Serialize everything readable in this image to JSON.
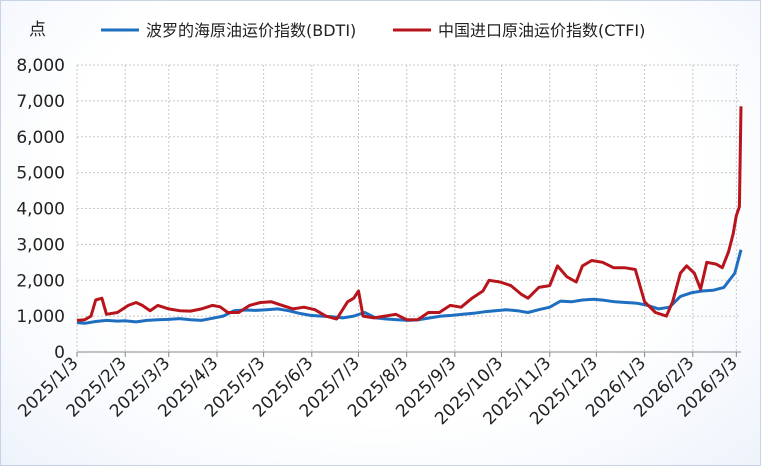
{
  "chart_data": {
    "type": "line",
    "y_unit_label": "点",
    "ylim": [
      0,
      8000
    ],
    "yticks": [
      "0",
      "1,000",
      "2,000",
      "3,000",
      "4,000",
      "5,000",
      "6,000",
      "7,000",
      "8,000"
    ],
    "xticks": [
      "2025/1/3",
      "2025/2/3",
      "2025/3/3",
      "2025/4/3",
      "2025/5/3",
      "2025/6/3",
      "2025/7/3",
      "2025/8/3",
      "2025/9/3",
      "2025/10/3",
      "2025/11/3",
      "2025/12/3",
      "2026/1/3",
      "2026/2/3",
      "2026/3/3"
    ],
    "xlim": [
      "2025-01-03",
      "2026-03-06"
    ],
    "grid": true,
    "legend_position": "top",
    "series": [
      {
        "name": "波罗的海原油运价指数(BDTI)",
        "color": "#1f6fc1",
        "points": [
          [
            "2025-01-03",
            820
          ],
          [
            "2025-01-08",
            800
          ],
          [
            "2025-01-15",
            850
          ],
          [
            "2025-01-22",
            880
          ],
          [
            "2025-01-29",
            860
          ],
          [
            "2025-02-03",
            870
          ],
          [
            "2025-02-10",
            840
          ],
          [
            "2025-02-17",
            880
          ],
          [
            "2025-02-24",
            900
          ],
          [
            "2025-03-03",
            910
          ],
          [
            "2025-03-10",
            930
          ],
          [
            "2025-03-17",
            900
          ],
          [
            "2025-03-24",
            880
          ],
          [
            "2025-03-31",
            940
          ],
          [
            "2025-04-07",
            1000
          ],
          [
            "2025-04-14",
            1150
          ],
          [
            "2025-04-21",
            1170
          ],
          [
            "2025-04-28",
            1160
          ],
          [
            "2025-05-05",
            1180
          ],
          [
            "2025-05-12",
            1200
          ],
          [
            "2025-05-19",
            1150
          ],
          [
            "2025-05-26",
            1080
          ],
          [
            "2025-06-02",
            1020
          ],
          [
            "2025-06-09",
            1000
          ],
          [
            "2025-06-16",
            980
          ],
          [
            "2025-06-23",
            950
          ],
          [
            "2025-06-30",
            1000
          ],
          [
            "2025-07-07",
            1100
          ],
          [
            "2025-07-14",
            950
          ],
          [
            "2025-07-21",
            920
          ],
          [
            "2025-07-28",
            900
          ],
          [
            "2025-08-04",
            880
          ],
          [
            "2025-08-11",
            900
          ],
          [
            "2025-08-18",
            950
          ],
          [
            "2025-08-25",
            1000
          ],
          [
            "2025-09-01",
            1020
          ],
          [
            "2025-09-08",
            1050
          ],
          [
            "2025-09-15",
            1080
          ],
          [
            "2025-09-22",
            1120
          ],
          [
            "2025-09-29",
            1150
          ],
          [
            "2025-10-06",
            1180
          ],
          [
            "2025-10-13",
            1150
          ],
          [
            "2025-10-20",
            1100
          ],
          [
            "2025-10-27",
            1180
          ],
          [
            "2025-11-03",
            1250
          ],
          [
            "2025-11-10",
            1420
          ],
          [
            "2025-11-17",
            1400
          ],
          [
            "2025-11-24",
            1450
          ],
          [
            "2025-12-01",
            1470
          ],
          [
            "2025-12-08",
            1440
          ],
          [
            "2025-12-15",
            1400
          ],
          [
            "2025-12-22",
            1380
          ],
          [
            "2025-12-29",
            1360
          ],
          [
            "2026-01-05",
            1300
          ],
          [
            "2026-01-12",
            1200
          ],
          [
            "2026-01-19",
            1250
          ],
          [
            "2026-01-26",
            1550
          ],
          [
            "2026-02-02",
            1650
          ],
          [
            "2026-02-09",
            1700
          ],
          [
            "2026-02-16",
            1720
          ],
          [
            "2026-02-23",
            1800
          ],
          [
            "2026-03-02",
            2200
          ],
          [
            "2026-03-06",
            2850
          ]
        ]
      },
      {
        "name": "中国进口原油运价指数(CTFI)",
        "color": "#b8141b",
        "points": [
          [
            "2025-01-03",
            880
          ],
          [
            "2025-01-08",
            900
          ],
          [
            "2025-01-12",
            1000
          ],
          [
            "2025-01-15",
            1450
          ],
          [
            "2025-01-19",
            1500
          ],
          [
            "2025-01-22",
            1050
          ],
          [
            "2025-01-29",
            1100
          ],
          [
            "2025-02-05",
            1300
          ],
          [
            "2025-02-10",
            1380
          ],
          [
            "2025-02-14",
            1300
          ],
          [
            "2025-02-19",
            1150
          ],
          [
            "2025-02-24",
            1300
          ],
          [
            "2025-03-03",
            1200
          ],
          [
            "2025-03-10",
            1150
          ],
          [
            "2025-03-17",
            1140
          ],
          [
            "2025-03-24",
            1200
          ],
          [
            "2025-03-31",
            1300
          ],
          [
            "2025-04-05",
            1260
          ],
          [
            "2025-04-10",
            1100
          ],
          [
            "2025-04-17",
            1100
          ],
          [
            "2025-04-24",
            1300
          ],
          [
            "2025-05-01",
            1380
          ],
          [
            "2025-05-08",
            1400
          ],
          [
            "2025-05-15",
            1300
          ],
          [
            "2025-05-22",
            1200
          ],
          [
            "2025-05-29",
            1250
          ],
          [
            "2025-06-05",
            1180
          ],
          [
            "2025-06-12",
            1000
          ],
          [
            "2025-06-19",
            920
          ],
          [
            "2025-06-26",
            1400
          ],
          [
            "2025-06-30",
            1500
          ],
          [
            "2025-07-03",
            1700
          ],
          [
            "2025-07-06",
            1000
          ],
          [
            "2025-07-13",
            950
          ],
          [
            "2025-07-20",
            1000
          ],
          [
            "2025-07-27",
            1050
          ],
          [
            "2025-08-03",
            900
          ],
          [
            "2025-08-10",
            900
          ],
          [
            "2025-08-17",
            1100
          ],
          [
            "2025-08-24",
            1100
          ],
          [
            "2025-08-31",
            1300
          ],
          [
            "2025-09-07",
            1250
          ],
          [
            "2025-09-14",
            1500
          ],
          [
            "2025-09-21",
            1700
          ],
          [
            "2025-09-25",
            2000
          ],
          [
            "2025-10-02",
            1950
          ],
          [
            "2025-10-09",
            1850
          ],
          [
            "2025-10-16",
            1600
          ],
          [
            "2025-10-20",
            1500
          ],
          [
            "2025-10-27",
            1800
          ],
          [
            "2025-11-03",
            1850
          ],
          [
            "2025-11-08",
            2400
          ],
          [
            "2025-11-14",
            2100
          ],
          [
            "2025-11-20",
            1950
          ],
          [
            "2025-11-24",
            2400
          ],
          [
            "2025-11-30",
            2550
          ],
          [
            "2025-12-07",
            2500
          ],
          [
            "2025-12-14",
            2350
          ],
          [
            "2025-12-21",
            2350
          ],
          [
            "2025-12-28",
            2300
          ],
          [
            "2026-01-03",
            1400
          ],
          [
            "2026-01-10",
            1100
          ],
          [
            "2026-01-17",
            1000
          ],
          [
            "2026-01-21",
            1400
          ],
          [
            "2026-01-26",
            2200
          ],
          [
            "2026-01-30",
            2400
          ],
          [
            "2026-02-04",
            2200
          ],
          [
            "2026-02-08",
            1750
          ],
          [
            "2026-02-12",
            2500
          ],
          [
            "2026-02-18",
            2450
          ],
          [
            "2026-02-22",
            2350
          ],
          [
            "2026-02-26",
            2800
          ],
          [
            "2026-03-01",
            3300
          ],
          [
            "2026-03-03",
            3800
          ],
          [
            "2026-03-05",
            4050
          ],
          [
            "2026-03-06",
            6850
          ]
        ]
      }
    ]
  }
}
